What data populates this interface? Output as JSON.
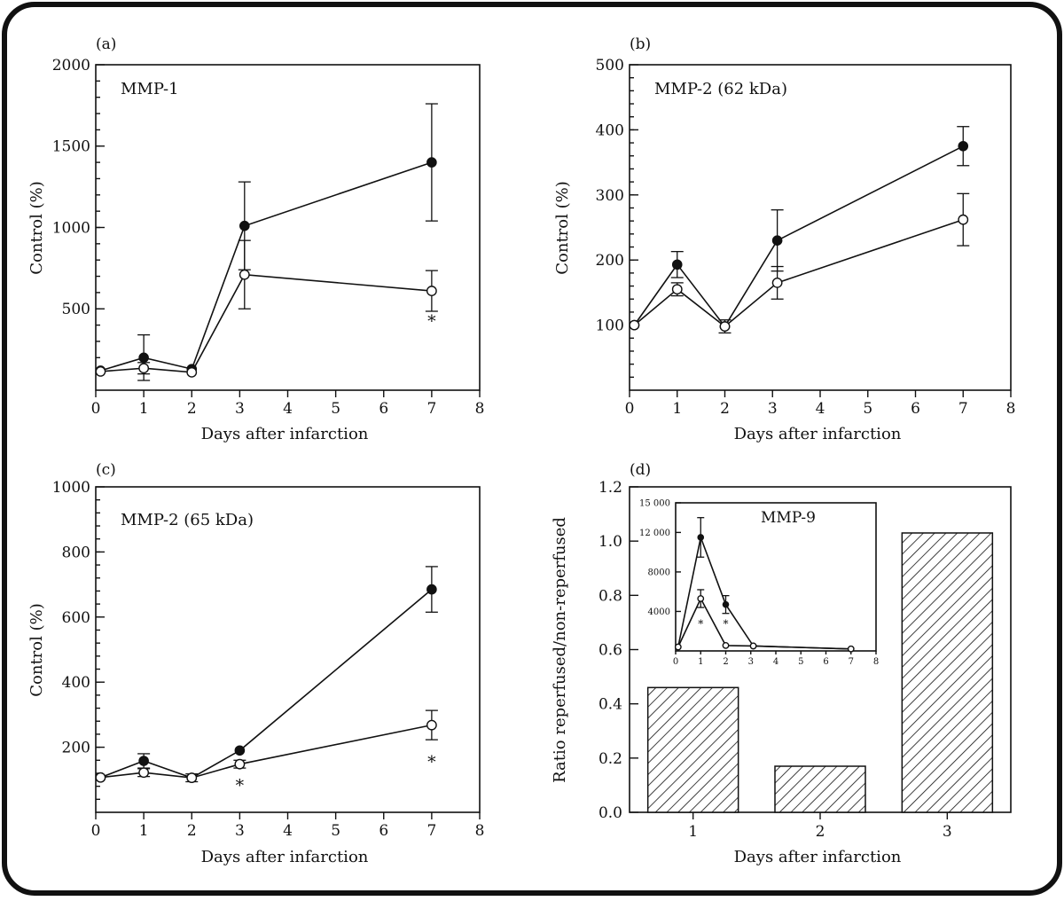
{
  "chart_data": [
    {
      "id": "a",
      "type": "line",
      "panel_label": "(a)",
      "title": "MMP-1",
      "xlabel": "Days after infarction",
      "ylabel": "Control (%)",
      "xlim": [
        0,
        8
      ],
      "ylim": [
        0,
        2000
      ],
      "xticks": [
        0,
        1,
        2,
        3,
        4,
        5,
        6,
        7,
        8
      ],
      "yticks": [
        500,
        1000,
        1500,
        2000
      ],
      "minor_ytick_step": 100,
      "series": [
        {
          "name": "filled",
          "marker": "filled",
          "x": [
            0.1,
            1,
            2,
            3.1,
            7
          ],
          "y": [
            120,
            200,
            130,
            1010,
            1400
          ],
          "err": [
            0,
            140,
            0,
            270,
            360
          ]
        },
        {
          "name": "open",
          "marker": "open",
          "x": [
            0.1,
            1,
            2,
            3.1,
            7
          ],
          "y": [
            115,
            135,
            110,
            710,
            610
          ],
          "err": [
            0,
            35,
            0,
            210,
            125
          ]
        }
      ],
      "annotations": [
        {
          "text": "*",
          "x": 7,
          "y": 390
        }
      ]
    },
    {
      "id": "b",
      "type": "line",
      "panel_label": "(b)",
      "title": "MMP-2 (62 kDa)",
      "xlabel": "Days after infarction",
      "ylabel": "Control (%)",
      "xlim": [
        0,
        8
      ],
      "ylim": [
        0,
        500
      ],
      "xticks": [
        0,
        1,
        2,
        3,
        4,
        5,
        6,
        7,
        8
      ],
      "yticks": [
        100,
        200,
        300,
        400,
        500
      ],
      "minor_ytick_step": 20,
      "series": [
        {
          "name": "filled",
          "marker": "filled",
          "x": [
            0.1,
            1,
            2,
            3.1,
            7
          ],
          "y": [
            100,
            193,
            98,
            230,
            375
          ],
          "err": [
            0,
            20,
            10,
            47,
            30
          ]
        },
        {
          "name": "open",
          "marker": "open",
          "x": [
            0.1,
            1,
            2,
            3.1,
            7
          ],
          "y": [
            100,
            155,
            98,
            165,
            262
          ],
          "err": [
            0,
            10,
            0,
            25,
            40
          ]
        }
      ],
      "annotations": []
    },
    {
      "id": "c",
      "type": "line",
      "panel_label": "(c)",
      "title": "MMP-2 (65 kDa)",
      "xlabel": "Days after infarction",
      "ylabel": "Control (%)",
      "xlim": [
        0,
        8
      ],
      "ylim": [
        0,
        1000
      ],
      "xticks": [
        0,
        1,
        2,
        3,
        4,
        5,
        6,
        7,
        8
      ],
      "yticks": [
        200,
        400,
        600,
        800,
        1000
      ],
      "minor_ytick_step": 40,
      "series": [
        {
          "name": "filled",
          "marker": "filled",
          "x": [
            0.1,
            1,
            2,
            3,
            7
          ],
          "y": [
            107,
            158,
            106,
            190,
            685
          ],
          "err": [
            0,
            22,
            12,
            0,
            70
          ]
        },
        {
          "name": "open",
          "marker": "open",
          "x": [
            0.1,
            1,
            2,
            3,
            7
          ],
          "y": [
            107,
            122,
            106,
            148,
            268
          ],
          "err": [
            0,
            12,
            0,
            12,
            45
          ]
        }
      ],
      "annotations": [
        {
          "text": "*",
          "x": 3,
          "y": 65
        },
        {
          "text": "*",
          "x": 7,
          "y": 138
        }
      ]
    },
    {
      "id": "d",
      "type": "bar",
      "panel_label": "(d)",
      "title": "",
      "xlabel": "Days after infarction",
      "ylabel": "Ratio reperfused/non-reperfused",
      "categories": [
        "1",
        "2",
        "3"
      ],
      "values": [
        0.46,
        0.17,
        1.03
      ],
      "ylim": [
        0,
        1.2
      ],
      "yticks": [
        "0.0",
        "0.2",
        "0.4",
        "0.6",
        "0.8",
        "1.0",
        "1.2"
      ],
      "inset": {
        "type": "line",
        "title": "MMP-9",
        "xlim": [
          0,
          8
        ],
        "ylim": [
          0,
          15000
        ],
        "xticks": [
          0,
          1,
          2,
          3,
          4,
          5,
          6,
          7,
          8
        ],
        "yticks": [
          4000,
          8000,
          12000,
          15000
        ],
        "ytick_labels": [
          "4000",
          "8000",
          "12 000",
          "15 000"
        ],
        "series": [
          {
            "name": "filled",
            "marker": "filled",
            "x": [
              0.1,
              1,
              2,
              3.1,
              7
            ],
            "y": [
              400,
              11500,
              4700,
              500,
              200
            ],
            "err": [
              0,
              2000,
              900,
              0,
              0
            ]
          },
          {
            "name": "open",
            "marker": "open",
            "x": [
              0.1,
              1,
              2,
              3.1,
              7
            ],
            "y": [
              400,
              5300,
              550,
              500,
              200
            ],
            "err": [
              0,
              900,
              0,
              0,
              0
            ]
          }
        ],
        "annotations": [
          {
            "text": "*",
            "x": 1,
            "y": 2400
          },
          {
            "text": "*",
            "x": 2,
            "y": 2400
          }
        ]
      }
    }
  ]
}
